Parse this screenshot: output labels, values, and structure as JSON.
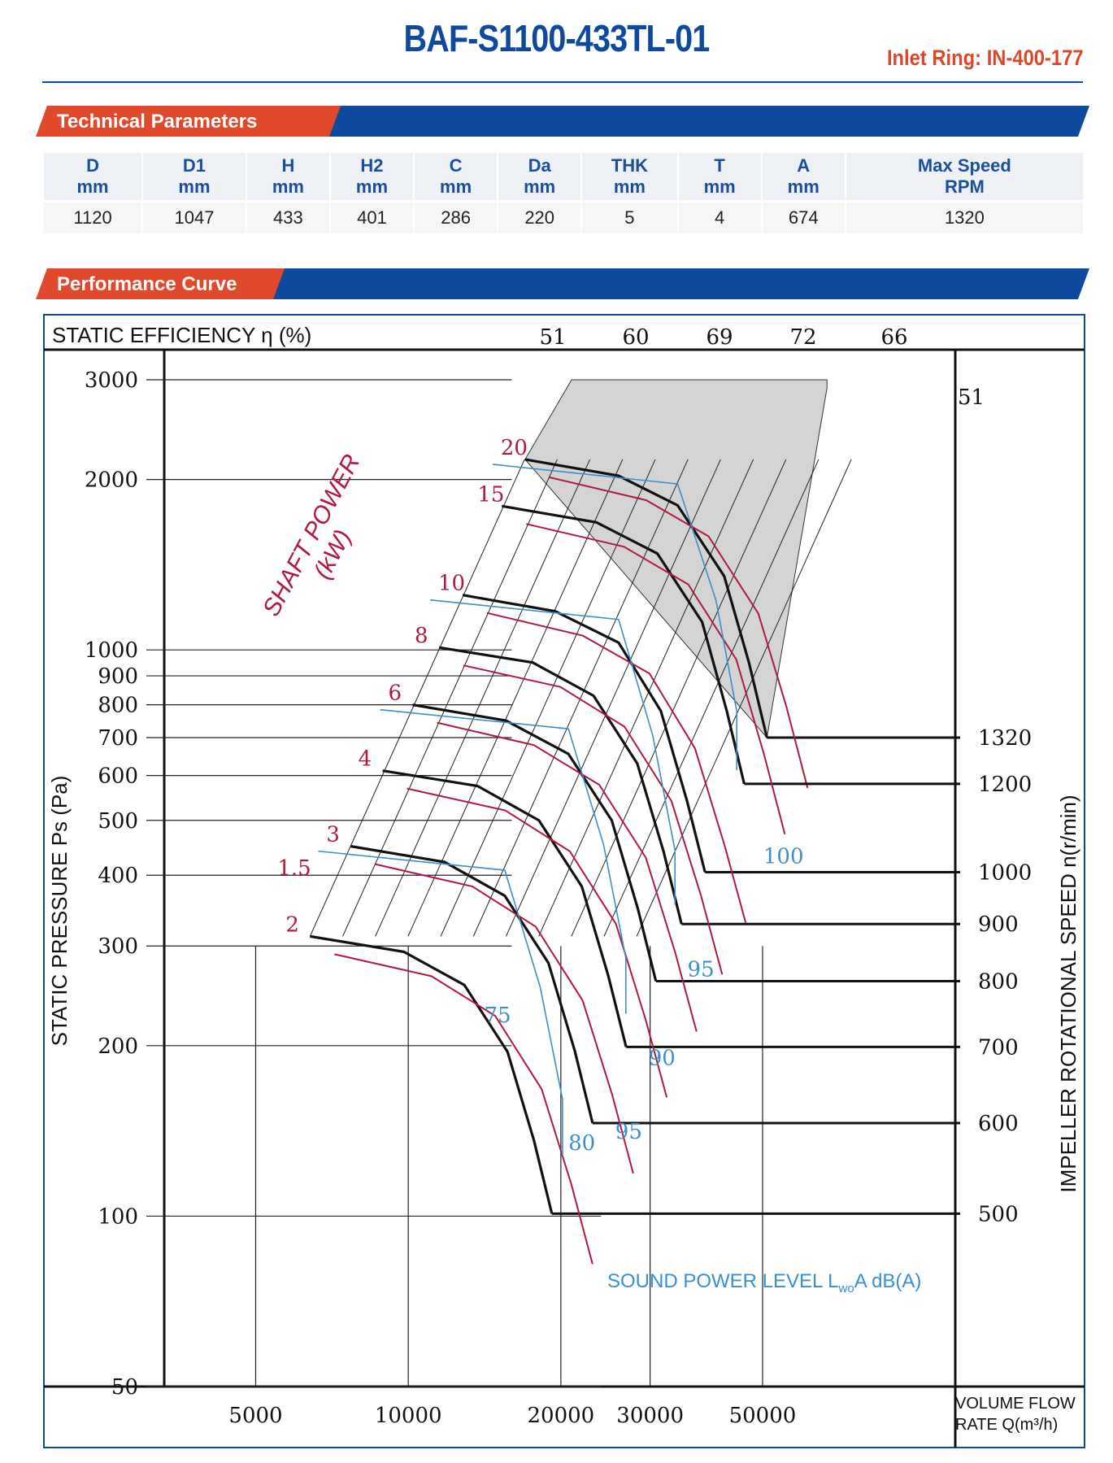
{
  "header": {
    "title": "BAF-S1100-433TL-01",
    "inlet_ring": "Inlet Ring: IN-400-177"
  },
  "sections": {
    "technical": "Technical Parameters",
    "performance": "Performance Curve"
  },
  "parameters": {
    "headers": [
      [
        "D",
        "mm"
      ],
      [
        "D1",
        "mm"
      ],
      [
        "H",
        "mm"
      ],
      [
        "H2",
        "mm"
      ],
      [
        "C",
        "mm"
      ],
      [
        "Da",
        "mm"
      ],
      [
        "THK",
        "mm"
      ],
      [
        "T",
        "mm"
      ],
      [
        "A",
        "mm"
      ],
      [
        "Max Speed",
        "RPM"
      ]
    ],
    "values": [
      "1120",
      "1047",
      "433",
      "401",
      "286",
      "220",
      "5",
      "4",
      "674",
      "1320"
    ]
  },
  "colors": {
    "brand_blue": "#0d4a9e",
    "accent_orange": "#e0492b",
    "power_curve": "#b01a3c",
    "noise_curve": "#3a8fd0",
    "speed_curve": "#111111",
    "overload_zone": "#d4d4d4"
  },
  "chart_data": {
    "type": "line",
    "xlabel_lines": [
      "VOLUME FLOW",
      "RATE  Q(m³/h)"
    ],
    "ylabel": "STATIC PRESSURE Ps (Pa)",
    "y2label": "IMPELLER ROTATIONAL SPEED n(r/min)",
    "efficiency_label": "STATIC EFFICIENCY η (%)",
    "shaft_power_label": [
      "SHAFT POWER",
      "(kW)"
    ],
    "sound_label": {
      "main": "SOUND POWER LEVEL L",
      "sub": "wo",
      "tail": "A dB(A)"
    },
    "x_scale": "log",
    "y_scale": "log",
    "xlim": [
      3300,
      120000
    ],
    "ylim": [
      50,
      3000
    ],
    "x_ticks": [
      5000,
      10000,
      20000,
      30000,
      50000
    ],
    "y_ticks": [
      3000,
      2000,
      1000,
      900,
      800,
      700,
      600,
      500,
      400,
      300,
      200,
      100,
      50
    ],
    "efficiency_lines": [
      51,
      60,
      69,
      72,
      66,
      51
    ],
    "speed_curves": [
      {
        "rpm": 1320,
        "points": [
          [
            17000,
            2170
          ],
          [
            26000,
            2030
          ],
          [
            34000,
            1800
          ],
          [
            42000,
            1350
          ],
          [
            47000,
            950
          ],
          [
            51000,
            700
          ]
        ]
      },
      {
        "rpm": 1200,
        "points": [
          [
            15300,
            1795
          ],
          [
            23500,
            1680
          ],
          [
            31000,
            1480
          ],
          [
            38000,
            1120
          ],
          [
            42500,
            780
          ],
          [
            46000,
            580
          ]
        ]
      },
      {
        "rpm": 1000,
        "points": [
          [
            12800,
            1250
          ],
          [
            19500,
            1170
          ],
          [
            26000,
            1030
          ],
          [
            31500,
            780
          ],
          [
            35500,
            540
          ],
          [
            38500,
            405
          ]
        ]
      },
      {
        "rpm": 900,
        "points": [
          [
            11500,
            1010
          ],
          [
            17600,
            950
          ],
          [
            23200,
            830
          ],
          [
            28300,
            630
          ],
          [
            31900,
            440
          ],
          [
            34600,
            328
          ]
        ]
      },
      {
        "rpm": 800,
        "points": [
          [
            10200,
            800
          ],
          [
            15600,
            750
          ],
          [
            20700,
            655
          ],
          [
            25200,
            500
          ],
          [
            28400,
            348
          ],
          [
            30800,
            260
          ]
        ]
      },
      {
        "rpm": 700,
        "points": [
          [
            8900,
            612
          ],
          [
            13700,
            575
          ],
          [
            18100,
            500
          ],
          [
            22000,
            382
          ],
          [
            24800,
            266
          ],
          [
            26900,
            199
          ]
        ]
      },
      {
        "rpm": 600,
        "points": [
          [
            7700,
            450
          ],
          [
            11800,
            422
          ],
          [
            15500,
            368
          ],
          [
            18900,
            280
          ],
          [
            21300,
            196
          ],
          [
            23100,
            146
          ]
        ]
      },
      {
        "rpm": 500,
        "points": [
          [
            6400,
            312
          ],
          [
            9800,
            293
          ],
          [
            12900,
            256
          ],
          [
            15700,
            195
          ],
          [
            17700,
            136
          ],
          [
            19200,
            101
          ]
        ]
      }
    ],
    "power_labels": [
      "20",
      "15",
      "10",
      "8",
      "6",
      "4",
      "3",
      "2",
      "1.5"
    ],
    "sound_levels": [
      "100",
      "95",
      "90",
      "95",
      "80",
      "75"
    ],
    "overload_boundary": [
      [
        17000,
        2170
      ],
      [
        51000,
        700
      ],
      [
        67000,
        2900
      ],
      [
        67000,
        3000
      ],
      [
        21000,
        3000
      ]
    ]
  }
}
